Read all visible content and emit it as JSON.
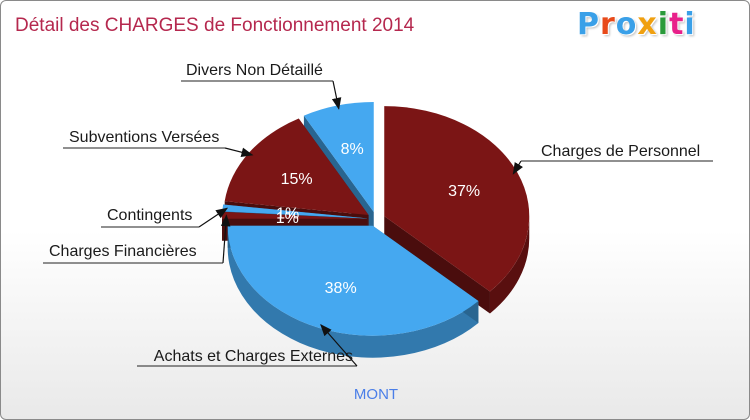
{
  "title": "Détail des CHARGES de Fonctionnement 2014",
  "logo": {
    "text": "Proxiti",
    "letter_colors": [
      "#3aa0e8",
      "#e84a1a",
      "#3aa0e8",
      "#f0a010",
      "#2a9a3a",
      "#e8208a",
      "#3aa0e8"
    ]
  },
  "commune": "MONT",
  "colors": {
    "dark_red": "#7b1515",
    "blue": "#45a8f0",
    "title": "#b5284e"
  },
  "chart_data": {
    "type": "pie",
    "title": "Détail des CHARGES de Fonctionnement 2014",
    "slices": [
      {
        "label": "Charges de Personnel",
        "value": 37,
        "pct_label": "37%",
        "color": "#7b1515"
      },
      {
        "label": "Achats et Charges Externes",
        "value": 38,
        "pct_label": "38%",
        "color": "#45a8f0"
      },
      {
        "label": "Charges Financières",
        "value": 1,
        "pct_label": "1%",
        "color": "#7b1515"
      },
      {
        "label": "Contingents",
        "value": 1,
        "pct_label": "1%",
        "color": "#45a8f0"
      },
      {
        "label": "Subventions Versées",
        "value": 15,
        "pct_label": "15%",
        "color": "#7b1515"
      },
      {
        "label": "Divers Non Détaillé",
        "value": 8,
        "pct_label": "8%",
        "color": "#45a8f0"
      }
    ]
  }
}
